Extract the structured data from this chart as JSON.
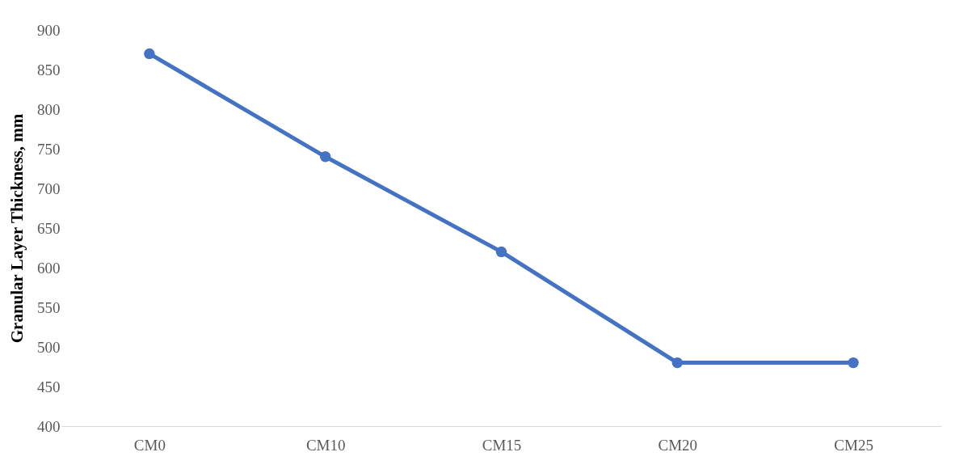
{
  "chart_data": {
    "type": "line",
    "ylabel": "Granular Layer Thickness, mm",
    "categories": [
      "CM0",
      "CM10",
      "CM15",
      "CM20",
      "CM25"
    ],
    "series": [
      {
        "color": "#4472c4",
        "values": [
          870,
          740,
          620,
          480,
          480
        ]
      }
    ],
    "ylim": [
      400,
      900
    ],
    "yticks": [
      400,
      450,
      500,
      550,
      600,
      650,
      700,
      750,
      800,
      850,
      900
    ],
    "grid": false,
    "marker": "circle",
    "line_style": "solid"
  }
}
